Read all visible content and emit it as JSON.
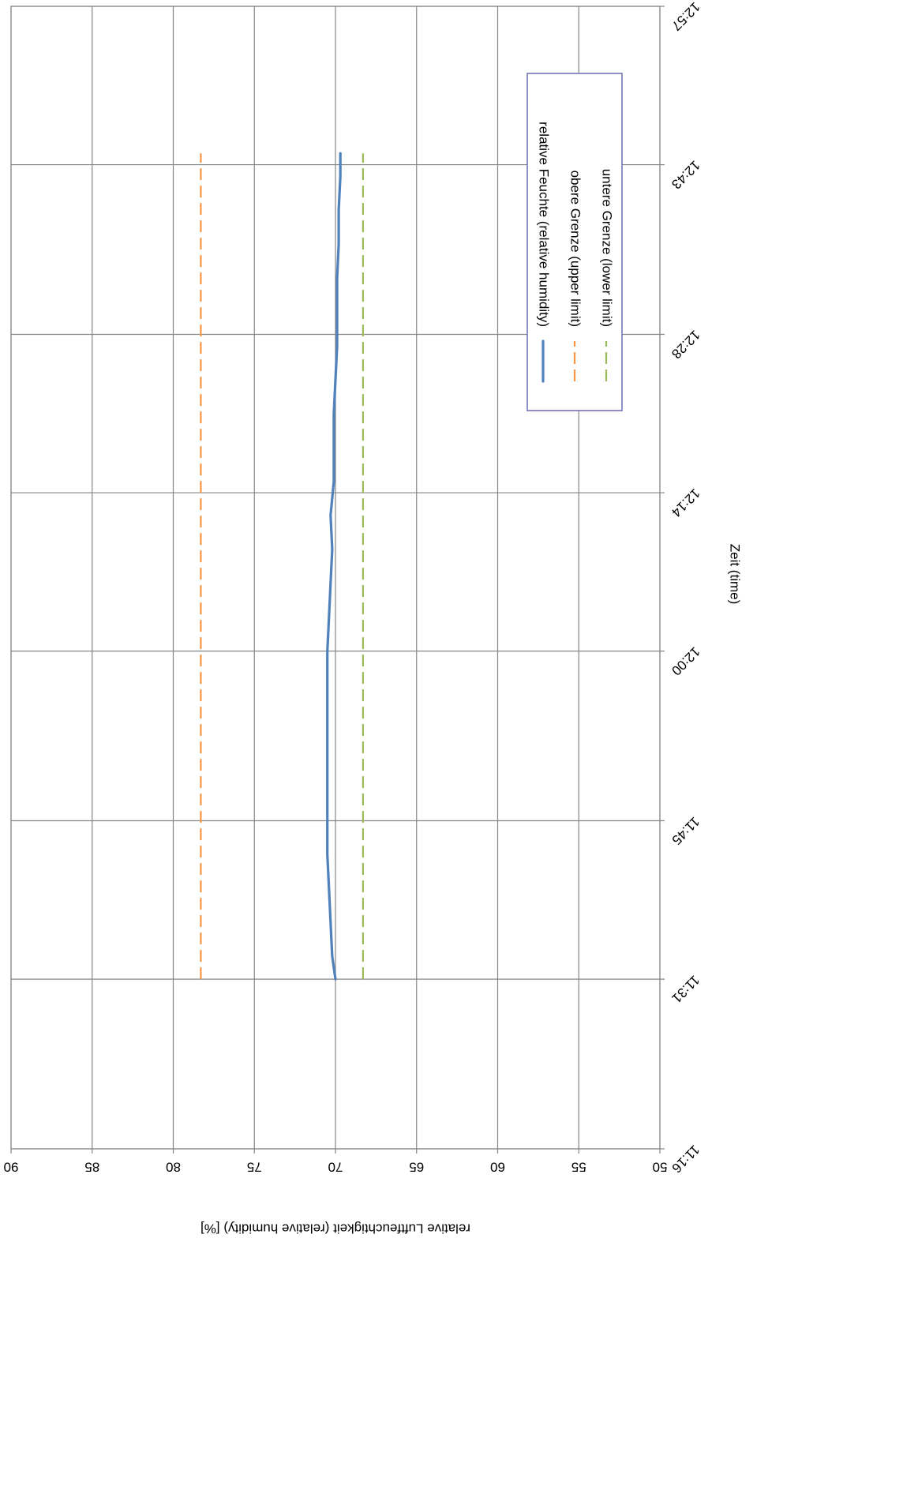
{
  "chart_data": {
    "type": "line",
    "orientation": "rotated-90-clockwise",
    "xlabel": "Zeit (time)",
    "ylabel": "relative Luftfeuchtigkeit (relative humidity) [%]",
    "xlim": [
      "11:16",
      "12:57"
    ],
    "x_ticks": [
      "11:16",
      "11:31",
      "11:45",
      "12:00",
      "12:14",
      "12:28",
      "12:43",
      "12:57"
    ],
    "ylim": [
      50,
      90
    ],
    "y_ticks": [
      "50",
      "55",
      "60",
      "65",
      "70",
      "75",
      "80",
      "85",
      "90"
    ],
    "grid": true,
    "legend_position": "top-right",
    "series": [
      {
        "name": "relative Feuchte (relative humidity)",
        "color": "#4f81bd",
        "style": "solid",
        "x": [
          "11:31",
          "11:33",
          "11:36",
          "11:39",
          "11:42",
          "11:45",
          "11:48",
          "11:51",
          "11:54",
          "11:57",
          "12:00",
          "12:03",
          "12:06",
          "12:09",
          "12:12",
          "12:15",
          "12:18",
          "12:21",
          "12:24",
          "12:27",
          "12:30",
          "12:33",
          "12:36",
          "12:39",
          "12:42",
          "12:44"
        ],
        "values": [
          70.0,
          70.2,
          70.3,
          70.4,
          70.5,
          70.5,
          70.5,
          70.5,
          70.5,
          70.5,
          70.5,
          70.4,
          70.3,
          70.2,
          70.3,
          70.1,
          70.1,
          70.1,
          70.0,
          69.9,
          69.9,
          69.9,
          69.8,
          69.8,
          69.7,
          69.7
        ]
      },
      {
        "name": "obere Grenze (upper limit)",
        "color": "#f79646",
        "style": "dashed",
        "x": [
          "11:31",
          "12:44"
        ],
        "values": [
          78.3,
          78.3
        ]
      },
      {
        "name": "untere Grenze (lower limit)",
        "color": "#9bbb59",
        "style": "dashed",
        "x": [
          "11:31",
          "12:44"
        ],
        "values": [
          68.3,
          68.3
        ]
      }
    ]
  }
}
